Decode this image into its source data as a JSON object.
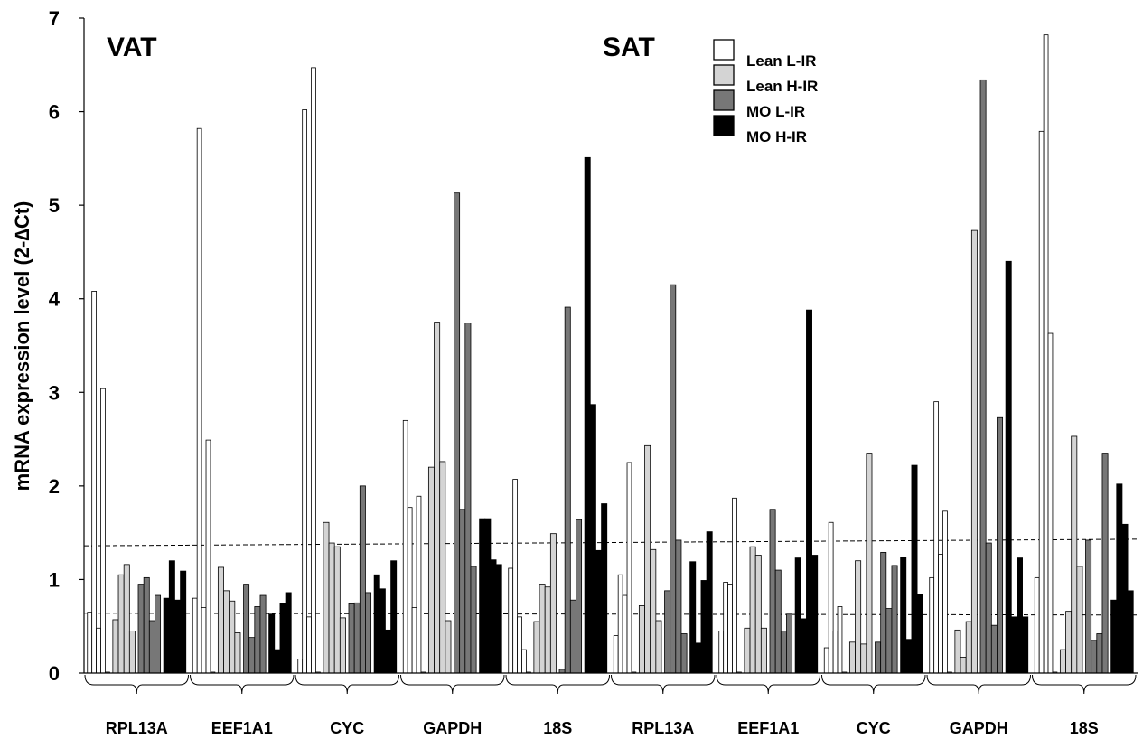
{
  "chart_data": {
    "type": "bar",
    "ylabel": "mRNA expression level (2-∆Ct)",
    "ylim": [
      0,
      7
    ],
    "yticks": [
      "0",
      "1",
      "2",
      "3",
      "4",
      "5",
      "6",
      "7"
    ],
    "panels": [
      "VAT",
      "SAT"
    ],
    "groups": [
      {
        "tissue": "VAT",
        "label": "RPL13A"
      },
      {
        "tissue": "VAT",
        "label": "EEF1A1"
      },
      {
        "tissue": "VAT",
        "label": "CYC"
      },
      {
        "tissue": "VAT",
        "label": "GAPDH"
      },
      {
        "tissue": "VAT",
        "label": "18S"
      },
      {
        "tissue": "SAT",
        "label": "RPL13A"
      },
      {
        "tissue": "SAT",
        "label": "EEF1A1"
      },
      {
        "tissue": "SAT",
        "label": "CYC"
      },
      {
        "tissue": "SAT",
        "label": "GAPDH"
      },
      {
        "tissue": "SAT",
        "label": "18S"
      }
    ],
    "legend_position": "top-right",
    "series": [
      {
        "name": "Lean L-IR",
        "color": "#ffffff",
        "values": [
          [
            0.65,
            4.08,
            0.48,
            3.04,
            0.01
          ],
          [
            0.8,
            5.82,
            0.7,
            2.49,
            0.01
          ],
          [
            0.15,
            6.02,
            0.6,
            6.47,
            0.01
          ],
          [
            2.7,
            1.77,
            0.7,
            1.89,
            0.01
          ],
          [
            1.12,
            2.07,
            0.6,
            0.25,
            0.01
          ],
          [
            0.4,
            1.05,
            0.83,
            2.25,
            0.01
          ],
          [
            0.45,
            0.97,
            0.95,
            1.87,
            0.01
          ],
          [
            0.27,
            1.61,
            0.45,
            0.71,
            0.01
          ],
          [
            1.02,
            2.9,
            1.27,
            1.73,
            0.01
          ],
          [
            1.02,
            5.79,
            6.82,
            3.63,
            0.01
          ]
        ]
      },
      {
        "name": "Lean H-IR",
        "color": "#d4d4d4",
        "values": [
          [
            0.57,
            1.05,
            1.16,
            0.45
          ],
          [
            1.13,
            0.88,
            0.77,
            0.43
          ],
          [
            1.61,
            1.39,
            1.35,
            0.59
          ],
          [
            2.2,
            3.75,
            2.26,
            0.56
          ],
          [
            0.55,
            0.95,
            0.92,
            1.49
          ],
          [
            0.72,
            2.43,
            1.32,
            0.56
          ],
          [
            0.48,
            1.35,
            1.26,
            0.48
          ],
          [
            0.33,
            1.2,
            0.31,
            2.35
          ],
          [
            0.46,
            0.17,
            0.55,
            4.73
          ],
          [
            0.25,
            0.66,
            2.53,
            1.14
          ]
        ]
      },
      {
        "name": "MO L-IR",
        "color": "#777777",
        "values": [
          [
            0.95,
            1.02,
            0.56,
            0.83
          ],
          [
            0.95,
            0.38,
            0.71,
            0.83
          ],
          [
            0.74,
            0.75,
            2.0,
            0.86
          ],
          [
            5.13,
            1.75,
            3.74,
            1.14
          ],
          [
            0.04,
            3.91,
            0.78,
            1.64
          ],
          [
            0.88,
            4.15,
            1.42,
            0.42
          ],
          [
            1.75,
            1.1,
            0.45,
            0.63
          ],
          [
            0.33,
            1.29,
            0.69,
            1.15
          ],
          [
            6.34,
            1.39,
            0.51,
            2.73
          ],
          [
            1.42,
            0.35,
            0.42,
            2.35
          ]
        ]
      },
      {
        "name": "MO H-IR",
        "color": "#000000",
        "values": [
          [
            0.8,
            1.2,
            0.78,
            1.09
          ],
          [
            0.63,
            0.25,
            0.74,
            0.86
          ],
          [
            1.05,
            0.9,
            0.46,
            1.2
          ],
          [
            1.65,
            1.65,
            1.21,
            1.16
          ],
          [
            5.51,
            2.87,
            1.31,
            1.81
          ],
          [
            1.19,
            0.32,
            0.99,
            1.51
          ],
          [
            1.23,
            0.58,
            3.88,
            1.26
          ],
          [
            1.24,
            0.36,
            2.22,
            0.84
          ],
          [
            4.4,
            0.6,
            1.23,
            0.6
          ],
          [
            0.78,
            2.02,
            1.59,
            0.88
          ]
        ]
      }
    ],
    "reference_lines": [
      {
        "style": "dashed",
        "y_start": 1.36,
        "y_end": 1.43
      },
      {
        "style": "dashed",
        "y_start": 0.64,
        "y_end": 0.62
      }
    ]
  }
}
